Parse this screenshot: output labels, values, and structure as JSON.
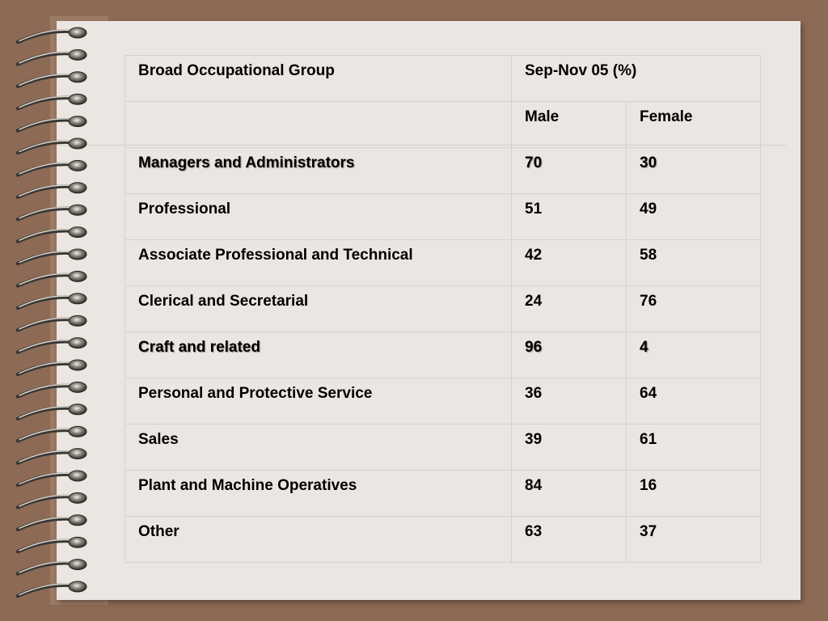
{
  "table": {
    "header": {
      "group_label": "Broad Occupational Group",
      "period_label": "Sep-Nov 05 (%)",
      "male_label": "Male",
      "female_label": "Female"
    },
    "rows": [
      {
        "group": "Managers and Administrators",
        "male": "70",
        "female": "30"
      },
      {
        "group": "Professional",
        "male": "51",
        "female": "49"
      },
      {
        "group": "Associate Professional and Technical",
        "male": "42",
        "female": "58"
      },
      {
        "group": "Clerical and Secretarial",
        "male": "24",
        "female": "76"
      },
      {
        "group": "Craft and related",
        "male": "96",
        "female": "4"
      },
      {
        "group": "Personal and Protective Service",
        "male": "36",
        "female": "64"
      },
      {
        "group": "Sales",
        "male": "39",
        "female": "61"
      },
      {
        "group": "Plant and Machine Operatives",
        "male": "84",
        "female": "16"
      },
      {
        "group": "Other",
        "male": "63",
        "female": "37"
      }
    ]
  },
  "colors": {
    "background": "#8c6a55",
    "paper": "#ebe6e2",
    "text": "#000000"
  }
}
